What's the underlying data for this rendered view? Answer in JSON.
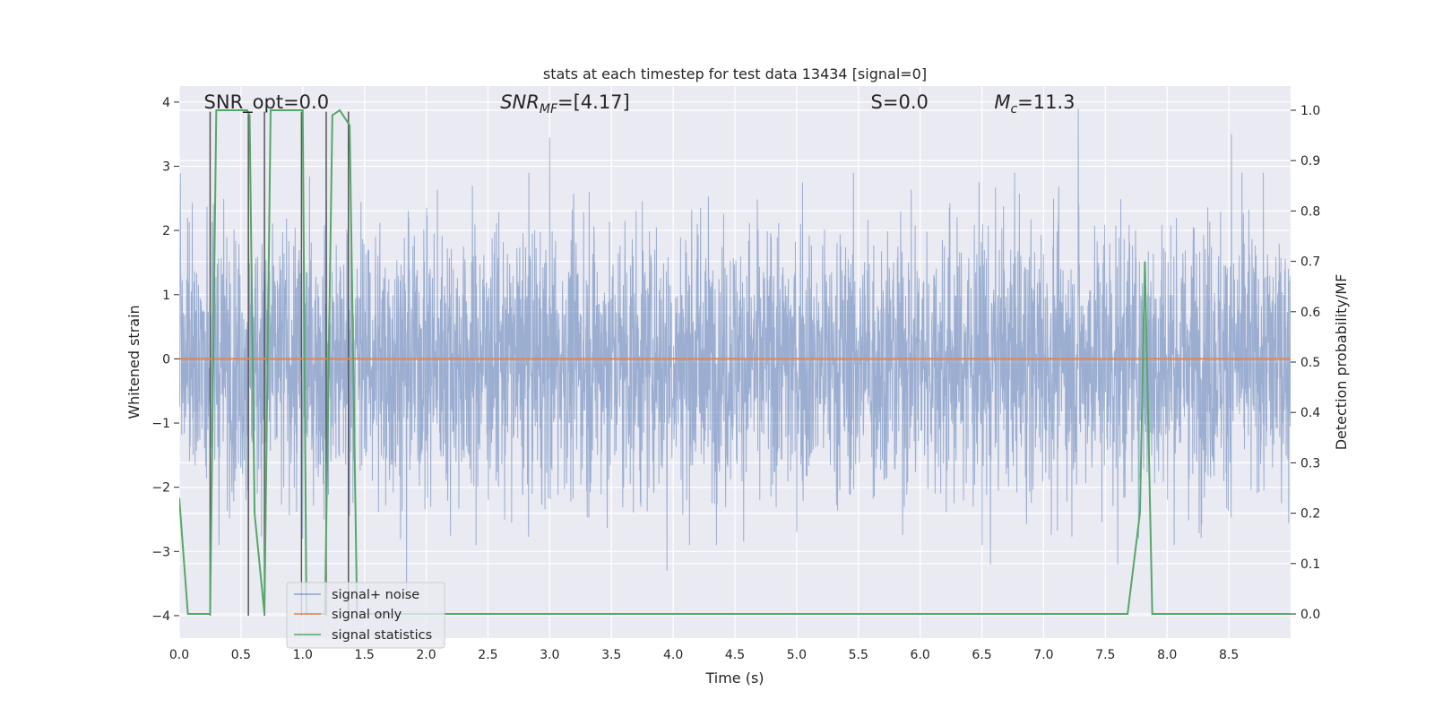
{
  "chart_data": {
    "type": "line",
    "title": "stats at each timestep for test data 13434 [signal=0]",
    "xlabel": "Time (s)",
    "ylabel": "Whitened strain",
    "y2label": "Detection probability/MF",
    "xlim": [
      0,
      9.0
    ],
    "ylim": [
      -4.35,
      4.25
    ],
    "y2lim": [
      -0.048,
      1.048
    ],
    "xticks": [
      0.0,
      0.5,
      1.0,
      1.5,
      2.0,
      2.5,
      3.0,
      3.5,
      4.0,
      4.5,
      5.0,
      5.5,
      6.0,
      6.5,
      7.0,
      7.5,
      8.0,
      8.5
    ],
    "xtick_labels": [
      "0.0",
      "0.5",
      "1.0",
      "1.5",
      "2.0",
      "2.5",
      "3.0",
      "3.5",
      "4.0",
      "4.5",
      "5.0",
      "5.5",
      "6.0",
      "6.5",
      "7.0",
      "7.5",
      "8.0",
      "8.5"
    ],
    "yticks": [
      4,
      3,
      2,
      1,
      0,
      -1,
      -2,
      -3,
      -4
    ],
    "ytick_labels": [
      "4",
      "3",
      "2",
      "1",
      "0",
      "−1",
      "−2",
      "−3",
      "−4"
    ],
    "y2ticks": [
      1.0,
      0.9,
      0.8,
      0.7,
      0.6,
      0.5,
      0.4,
      0.3,
      0.2,
      0.1,
      0.0
    ],
    "y2tick_labels": [
      "1.0",
      "0.9",
      "0.8",
      "0.7",
      "0.6",
      "0.5",
      "0.4",
      "0.3",
      "0.2",
      "0.1",
      "0.0"
    ],
    "grid": true,
    "legend_position": "lower-left",
    "annotations": [
      {
        "text": "SNR_opt=0.0",
        "x": 0.2,
        "y": 4.0
      },
      {
        "text": "SNR_MF=[4.17]",
        "x": 2.6,
        "y": 4.0
      },
      {
        "text": "S=0.0",
        "x": 5.6,
        "y": 4.0
      },
      {
        "text": "M_c=11.3",
        "x": 6.6,
        "y": 4.0
      }
    ],
    "noise_description": "dense whitened strain trace, amplitude mostly within ±2, peaks to about ±3.5",
    "noise_peaks": [
      {
        "x": 3.0,
        "y": 3.45
      },
      {
        "x": 7.28,
        "y": 3.9
      },
      {
        "x": 8.52,
        "y": 3.5
      },
      {
        "x": 1.84,
        "y": -3.6
      },
      {
        "x": 3.95,
        "y": -3.3
      },
      {
        "x": 6.57,
        "y": -3.2
      },
      {
        "x": 7.6,
        "y": -3.2
      },
      {
        "x": 1.0,
        "y": -2.8
      }
    ],
    "series": [
      {
        "name": "signal+ noise",
        "color": "#4c72b0"
      },
      {
        "name": "signal only",
        "color": "#dd8452",
        "values_constant": 0.0
      },
      {
        "name": "signal statistics",
        "color": "#55a868",
        "axis": "right",
        "x": [
          0.0,
          0.07,
          0.2,
          0.25,
          0.3,
          0.55,
          0.57,
          0.61,
          0.69,
          0.74,
          0.76,
          1.0,
          1.03,
          1.08,
          1.18,
          1.24,
          1.3,
          1.38,
          1.44,
          7.68,
          7.78,
          7.82,
          7.88,
          9.0
        ],
        "y": [
          0.23,
          0.0,
          0.0,
          0.0,
          1.0,
          1.0,
          0.99,
          0.2,
          0.0,
          1.0,
          1.0,
          1.0,
          0.0,
          0.0,
          0.0,
          0.99,
          1.0,
          0.97,
          0.0,
          0.0,
          0.2,
          0.7,
          0.0,
          0.0
        ]
      }
    ],
    "vertical_markers_x": [
      0.25,
      0.56,
      0.69,
      0.99,
      1.19,
      1.37
    ]
  }
}
